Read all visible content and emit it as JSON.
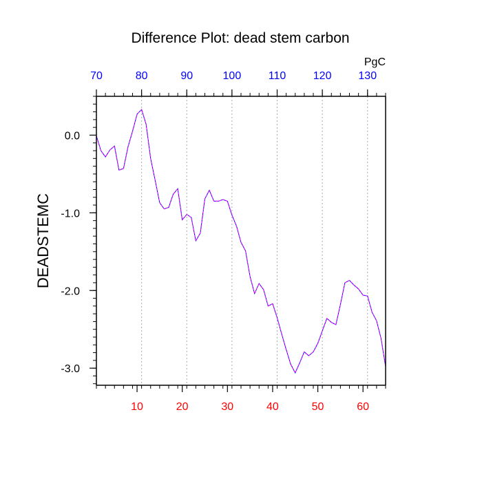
{
  "chart_data": {
    "type": "line",
    "title": "Difference Plot: dead stem carbon",
    "ylabel": "DEADSTEMC",
    "top_axis_unit": "PgC",
    "xlim": [
      1,
      65
    ],
    "ylim": [
      -3.22,
      0.5
    ],
    "x_ticks": [
      10,
      20,
      30,
      40,
      50,
      60
    ],
    "x_tick_labels": [
      "10",
      "20",
      "30",
      "40",
      "50",
      "60"
    ],
    "top_xlim": [
      70,
      134
    ],
    "top_ticks": [
      70,
      80,
      90,
      100,
      110,
      120,
      130
    ],
    "top_tick_labels": [
      "70",
      "80",
      "90",
      "100",
      "110",
      "120",
      "130"
    ],
    "y_ticks": [
      0.0,
      -1.0,
      -2.0,
      -3.0
    ],
    "y_tick_labels": [
      "0.0",
      "-1.0",
      "-2.0",
      "-3.0"
    ],
    "grid": "vertical dotted lines at major top-axis ticks",
    "colors": {
      "bottom_ticks": "#ff0000",
      "top_ticks": "#0000ff",
      "series_a": "#0000ff",
      "series_b": "#ff00ff",
      "grid": "#aaaaaa"
    },
    "series": [
      {
        "x": [
          1,
          2,
          3,
          4,
          5,
          6,
          7,
          8,
          9,
          10,
          11,
          12,
          13,
          14,
          15,
          16,
          17,
          18,
          19,
          20,
          21,
          22,
          23,
          24,
          25,
          26,
          27,
          28,
          29,
          30,
          31,
          32,
          33,
          34,
          35,
          36,
          37,
          38,
          39,
          40,
          41,
          42,
          43,
          44,
          45,
          46,
          47,
          48,
          49,
          50,
          51,
          52,
          53,
          54,
          55,
          56,
          57,
          58,
          59,
          60,
          61,
          62,
          63,
          64,
          65
        ],
        "values": [
          -0.01,
          -0.2,
          -0.28,
          -0.19,
          -0.14,
          -0.45,
          -0.43,
          -0.15,
          0.05,
          0.27,
          0.33,
          0.14,
          -0.3,
          -0.58,
          -0.87,
          -0.95,
          -0.93,
          -0.76,
          -0.69,
          -1.09,
          -1.02,
          -1.06,
          -1.36,
          -1.26,
          -0.82,
          -0.71,
          -0.85,
          -0.85,
          -0.83,
          -0.85,
          -1.03,
          -1.17,
          -1.38,
          -1.49,
          -1.82,
          -2.04,
          -1.91,
          -1.99,
          -2.2,
          -2.17,
          -2.35,
          -2.56,
          -2.76,
          -2.95,
          -3.06,
          -2.93,
          -2.79,
          -2.84,
          -2.79,
          -2.68,
          -2.52,
          -2.36,
          -2.41,
          -2.44,
          -2.18,
          -1.9,
          -1.87,
          -1.93,
          -1.98,
          -2.06,
          -2.07,
          -2.28,
          -2.39,
          -2.62,
          -2.98
        ]
      }
    ]
  }
}
